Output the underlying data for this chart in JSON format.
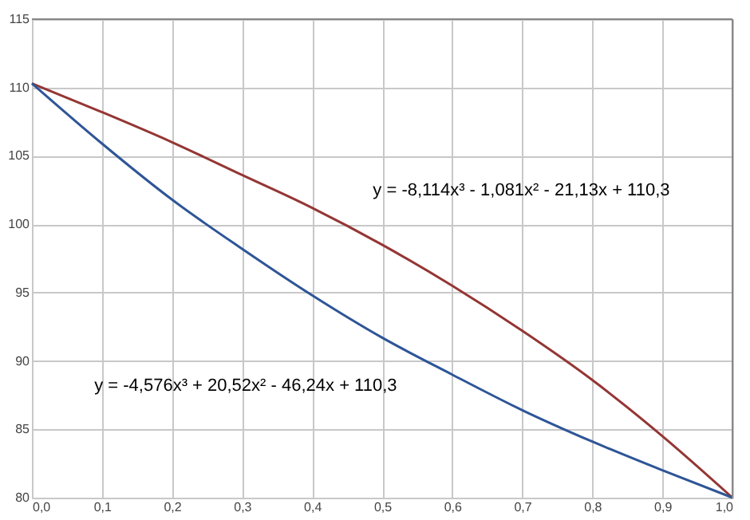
{
  "chart_data": {
    "type": "line",
    "x": [
      0,
      0.1,
      0.2,
      0.3,
      0.4,
      0.5,
      0.6,
      0.7,
      0.8,
      0.9,
      1.0
    ],
    "series": [
      {
        "color": "#943634",
        "values": [
          110.3,
          108.2,
          106.0,
          103.6,
          101.2,
          98.5,
          95.5,
          92.2,
          88.6,
          84.5,
          80.0
        ]
      },
      {
        "color": "#2e5597",
        "values": [
          110.3,
          105.9,
          101.8,
          98.2,
          94.8,
          91.7,
          89.0,
          86.4,
          84.1,
          82.0,
          80.0
        ]
      }
    ],
    "xlim": [
      0,
      1.0
    ],
    "ylim": [
      80,
      115
    ],
    "xticks": [
      {
        "value": 0,
        "label": "0,0"
      },
      {
        "value": 0.1,
        "label": "0,1"
      },
      {
        "value": 0.2,
        "label": "0,2"
      },
      {
        "value": 0.3,
        "label": "0,3"
      },
      {
        "value": 0.4,
        "label": "0,4"
      },
      {
        "value": 0.5,
        "label": "0,5"
      },
      {
        "value": 0.6,
        "label": "0,6"
      },
      {
        "value": 0.7,
        "label": "0,7"
      },
      {
        "value": 0.8,
        "label": "0,8"
      },
      {
        "value": 0.9,
        "label": "0,9"
      },
      {
        "value": 1.0,
        "label": "1,0"
      }
    ],
    "yticks": [
      80,
      85,
      90,
      95,
      100,
      105,
      110,
      115
    ],
    "annotations": [
      "y = -8,114x³ - 1,081x² - 21,13x + 110,3",
      "y = -4,576x³ + 20,52x² - 46,24x + 110,3"
    ],
    "grid": true,
    "marker": "none",
    "line_style": "solid"
  }
}
